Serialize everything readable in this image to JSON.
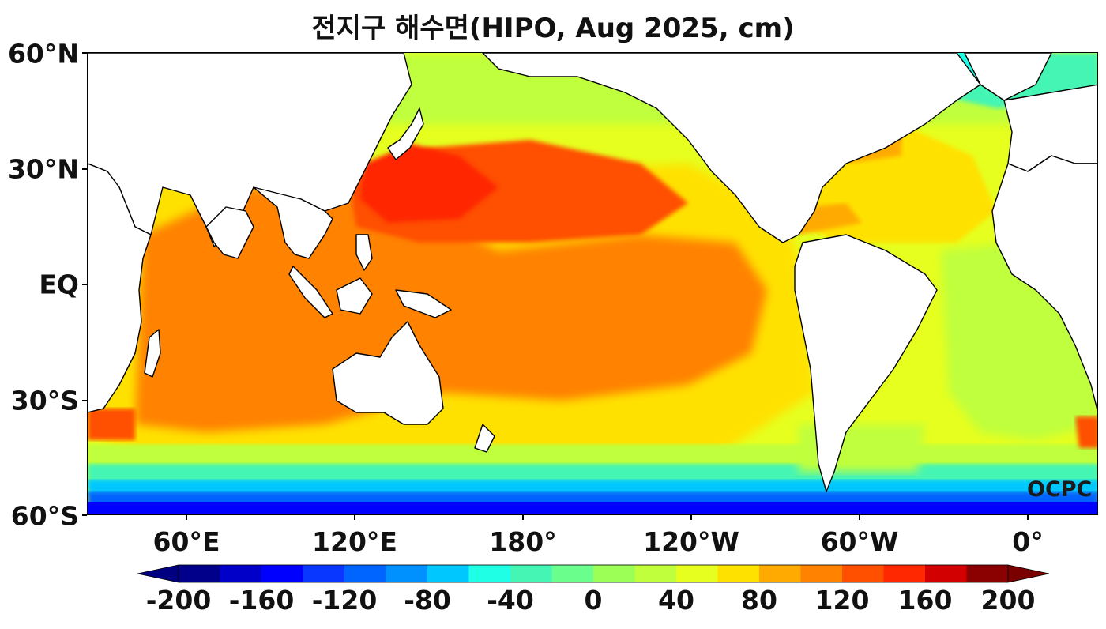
{
  "title": "전지구 해수면(HIPO, Aug 2025, cm)",
  "watermark": "OCPC",
  "lat_labels": [
    "60°N",
    "30°N",
    "EQ",
    "30°S",
    "60°S"
  ],
  "lon_labels": [
    "60°E",
    "120°E",
    "180°",
    "120°W",
    "60°W",
    "0°"
  ],
  "colorbar": {
    "min": -200,
    "max": 200,
    "step": 20,
    "extend": "both",
    "tick_labels": [
      "-200",
      "-160",
      "-120",
      "-80",
      "-40",
      "0",
      "40",
      "80",
      "120",
      "160",
      "200"
    ],
    "colors": [
      "#00008b",
      "#0000c8",
      "#0000ff",
      "#0a37ff",
      "#0064ff",
      "#0091ff",
      "#00c8ff",
      "#1effe6",
      "#44f5b4",
      "#6aff8c",
      "#9bff55",
      "#bfff3c",
      "#e6ff1e",
      "#ffe100",
      "#ffaa00",
      "#ff8200",
      "#ff5000",
      "#ff2800",
      "#d20000",
      "#8b0000"
    ],
    "under_color": "#000080",
    "over_color": "#7a0000"
  },
  "map": {
    "projection": "equirectangular",
    "lon_range": [
      30,
      390
    ],
    "lat_range": [
      -60,
      60
    ],
    "land_color": "#ffffff",
    "coast_color": "#000000"
  }
}
